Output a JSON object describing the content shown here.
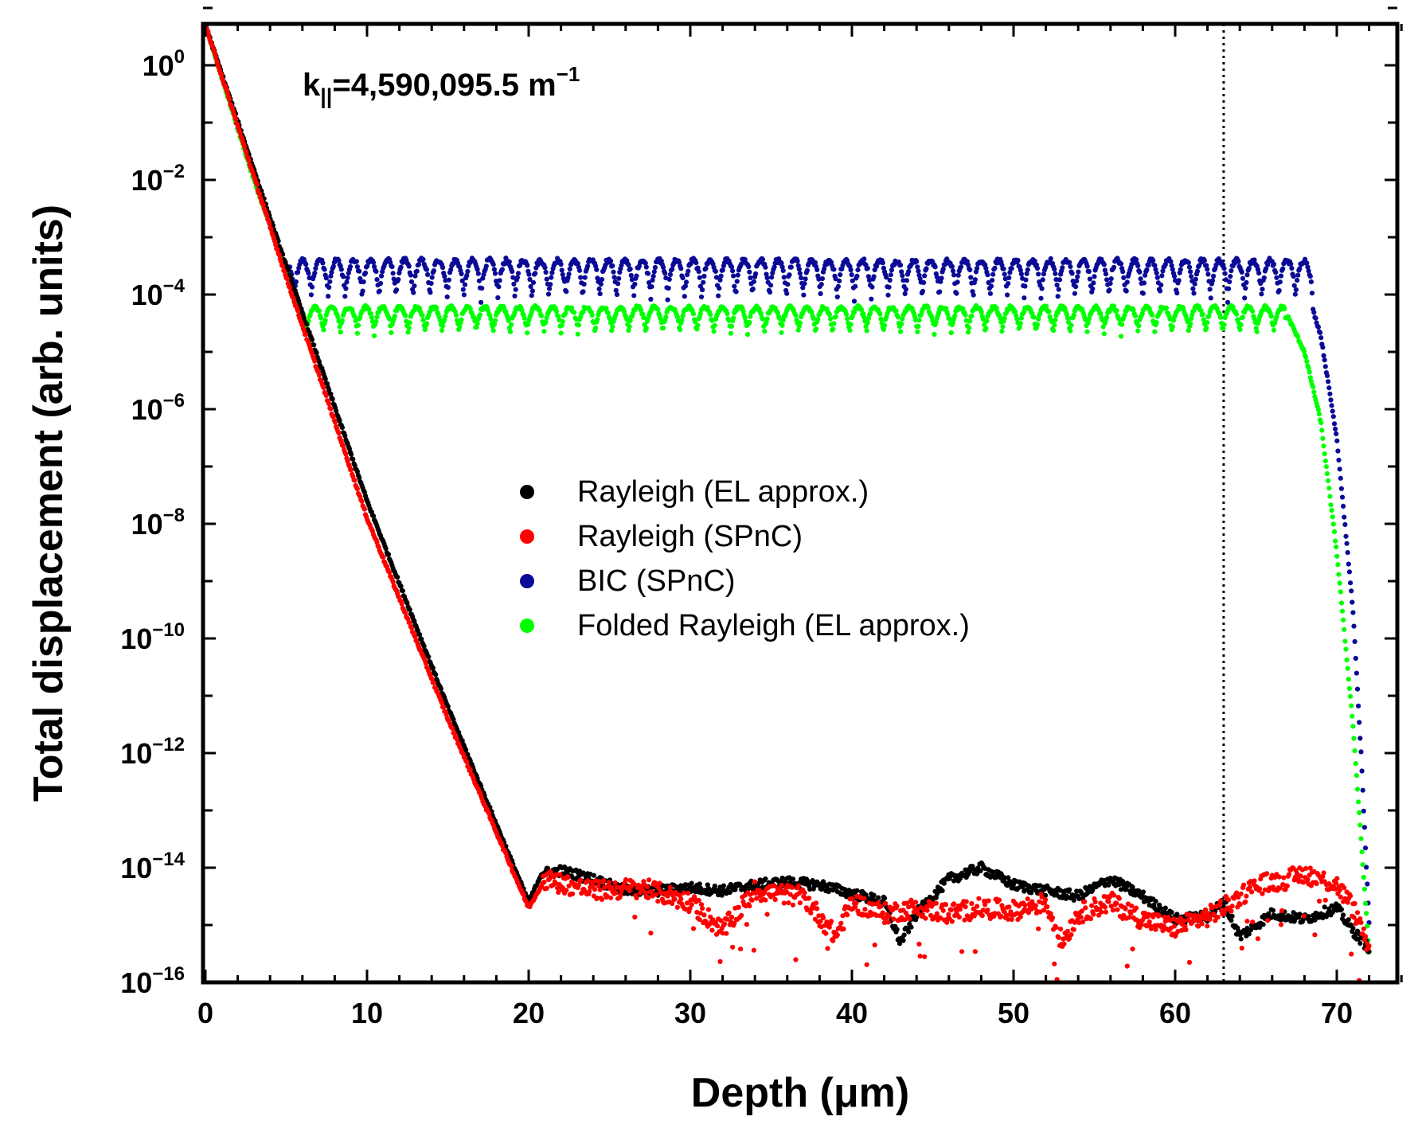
{
  "chart_data": {
    "type": "scatter",
    "title": "",
    "xlabel": "Depth (μm)",
    "ylabel": "Total displacement (arb. units)",
    "xlim": [
      0,
      75
    ],
    "ylim_log10": [
      -16,
      1.0
    ],
    "x_ticks": [
      "0",
      "10",
      "20",
      "30",
      "40",
      "50",
      "60",
      "70"
    ],
    "x_tick_values": [
      0,
      10,
      20,
      30,
      40,
      50,
      60,
      70
    ],
    "y_ticks": [
      {
        "base": "10",
        "exp": "0",
        "value": 0
      },
      {
        "base": "10",
        "exp": "−2",
        "value": -2
      },
      {
        "base": "10",
        "exp": "−4",
        "value": -4
      },
      {
        "base": "10",
        "exp": "−6",
        "value": -6
      },
      {
        "base": "10",
        "exp": "−8",
        "value": -8
      },
      {
        "base": "10",
        "exp": "−10",
        "value": -10
      },
      {
        "base": "10",
        "exp": "−12",
        "value": -12
      },
      {
        "base": "10",
        "exp": "−14",
        "value": -14
      },
      {
        "base": "10",
        "exp": "−16",
        "value": -16
      }
    ],
    "annotation": {
      "k": "k",
      "sub": "||",
      "text": "=4,590,095.5 m",
      "sup": "−1"
    },
    "vertical_line_x": 63,
    "legend_position": "center",
    "series": [
      {
        "name": "Rayleigh (EL approx.)",
        "color": "#000000",
        "points": [
          [
            0,
            0.7
          ],
          [
            5,
            -3.5
          ],
          [
            10,
            -7.6
          ],
          [
            15,
            -11.2
          ],
          [
            20,
            -14.6
          ],
          [
            20.8,
            -14.1
          ],
          [
            22,
            -14.05
          ],
          [
            24,
            -14.2
          ],
          [
            26,
            -14.4
          ],
          [
            28,
            -14.4
          ],
          [
            30,
            -14.35
          ],
          [
            32,
            -14.4
          ],
          [
            34,
            -14.3
          ],
          [
            36,
            -14.25
          ],
          [
            38,
            -14.3
          ],
          [
            40,
            -14.45
          ],
          [
            42,
            -14.6
          ],
          [
            43,
            -15.3
          ],
          [
            44,
            -14.8
          ],
          [
            46,
            -14.2
          ],
          [
            48,
            -14.0
          ],
          [
            50,
            -14.3
          ],
          [
            52,
            -14.4
          ],
          [
            54,
            -14.5
          ],
          [
            56,
            -14.2
          ],
          [
            58,
            -14.5
          ],
          [
            60,
            -14.9
          ],
          [
            62,
            -14.85
          ],
          [
            63,
            -14.6
          ],
          [
            64,
            -15.2
          ],
          [
            66,
            -14.8
          ],
          [
            68,
            -14.9
          ],
          [
            70,
            -14.7
          ],
          [
            71,
            -15.1
          ],
          [
            72,
            -15.4
          ]
        ]
      },
      {
        "name": "Rayleigh (SPnC)",
        "color": "#ff0000",
        "points": [
          [
            0,
            0.7
          ],
          [
            5,
            -3.7
          ],
          [
            10,
            -7.9
          ],
          [
            15,
            -11.4
          ],
          [
            20,
            -14.7
          ],
          [
            21,
            -14.2
          ],
          [
            24,
            -14.4
          ],
          [
            27,
            -14.35
          ],
          [
            30,
            -14.6
          ],
          [
            32,
            -15.1
          ],
          [
            34,
            -14.4
          ],
          [
            37,
            -14.5
          ],
          [
            39,
            -15.2
          ],
          [
            40,
            -14.6
          ],
          [
            42,
            -14.8
          ],
          [
            44,
            -14.7
          ],
          [
            46,
            -14.8
          ],
          [
            48,
            -14.7
          ],
          [
            50,
            -14.75
          ],
          [
            52,
            -14.6
          ],
          [
            53,
            -15.3
          ],
          [
            54,
            -14.8
          ],
          [
            56,
            -14.6
          ],
          [
            58,
            -14.9
          ],
          [
            60,
            -15.05
          ],
          [
            62,
            -14.85
          ],
          [
            63,
            -14.7
          ],
          [
            65,
            -14.3
          ],
          [
            67,
            -14.2
          ],
          [
            68,
            -14.1
          ],
          [
            70,
            -14.3
          ],
          [
            71,
            -14.7
          ],
          [
            72,
            -15.4
          ]
        ]
      },
      {
        "name": "BIC (SPnC)",
        "color": "#0a0a96",
        "points": [
          [
            0,
            0.7
          ],
          [
            3,
            -1.9
          ],
          [
            5,
            -3.6
          ],
          [
            5.5,
            -3.8
          ],
          [
            68,
            -3.8
          ],
          [
            69,
            -4.7
          ],
          [
            70,
            -6.5
          ],
          [
            71,
            -9.5
          ],
          [
            71.5,
            -12
          ],
          [
            72,
            -15
          ]
        ]
      },
      {
        "name": "Folded Rayleigh (EL approx.)",
        "color": "#00ff00",
        "points": [
          [
            0,
            0.7
          ],
          [
            3,
            -2.0
          ],
          [
            5,
            -3.6
          ],
          [
            6,
            -4.4
          ],
          [
            67,
            -4.4
          ],
          [
            68,
            -5.0
          ],
          [
            69,
            -6.2
          ],
          [
            70,
            -8.5
          ],
          [
            71,
            -11.5
          ],
          [
            72,
            -15.5
          ]
        ]
      }
    ]
  }
}
